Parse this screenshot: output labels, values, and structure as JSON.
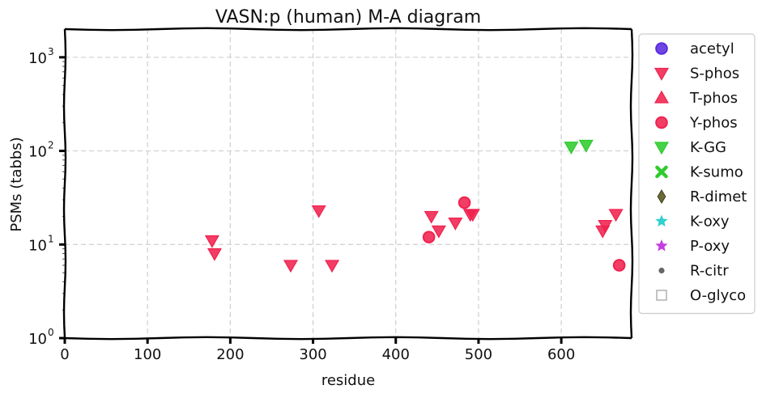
{
  "chart_data": {
    "type": "scatter",
    "title": "VASN:p (human) M-A diagram",
    "xlabel": "residue",
    "ylabel": "PSMs (tabbs)",
    "xlim": [
      0,
      685
    ],
    "ylim": [
      1,
      2000
    ],
    "yscale": "log",
    "grid": true,
    "legend_position": "outside-right",
    "x_ticks": [
      0,
      100,
      200,
      300,
      400,
      500,
      600
    ],
    "y_ticks": [
      {
        "value": 1,
        "base": "10",
        "exp": "0"
      },
      {
        "value": 10,
        "base": "10",
        "exp": "1"
      },
      {
        "value": 100,
        "base": "10",
        "exp": "2"
      },
      {
        "value": 1000,
        "base": "10",
        "exp": "3"
      }
    ],
    "series": [
      {
        "name": "acetyl",
        "marker": "circle",
        "color": "#5b2be0",
        "points": []
      },
      {
        "name": "S-phos",
        "marker": "triangle-down",
        "color": "#f0224f",
        "points": [
          [
            178,
            11
          ],
          [
            181,
            8
          ],
          [
            273,
            6
          ],
          [
            307,
            23
          ],
          [
            323,
            6
          ],
          [
            443,
            20
          ],
          [
            452,
            14
          ],
          [
            472,
            17
          ],
          [
            490,
            21
          ],
          [
            493,
            21
          ],
          [
            650,
            14
          ],
          [
            653,
            16
          ],
          [
            666,
            21
          ]
        ]
      },
      {
        "name": "T-phos",
        "marker": "triangle-up",
        "color": "#f0224f",
        "points": []
      },
      {
        "name": "Y-phos",
        "marker": "circle",
        "color": "#f0224f",
        "points": [
          [
            440,
            12
          ],
          [
            483,
            28
          ],
          [
            670,
            6
          ]
        ]
      },
      {
        "name": "K-GG",
        "marker": "triangle-down",
        "color": "#2ecc2e",
        "points": [
          [
            612,
            110
          ],
          [
            630,
            115
          ]
        ]
      },
      {
        "name": "K-sumo",
        "marker": "x",
        "color": "#2ecc2e",
        "points": []
      },
      {
        "name": "R-dimet",
        "marker": "diamond",
        "color": "#6b6b3a",
        "points": []
      },
      {
        "name": "K-oxy",
        "marker": "star",
        "color": "#2ed0d0",
        "points": []
      },
      {
        "name": "P-oxy",
        "marker": "star",
        "color": "#c43ee0",
        "points": []
      },
      {
        "name": "R-citr",
        "marker": "dot",
        "color": "#666666",
        "points": []
      },
      {
        "name": "O-glyco",
        "marker": "square-open",
        "color": "#aaaaaa",
        "points": []
      }
    ]
  }
}
